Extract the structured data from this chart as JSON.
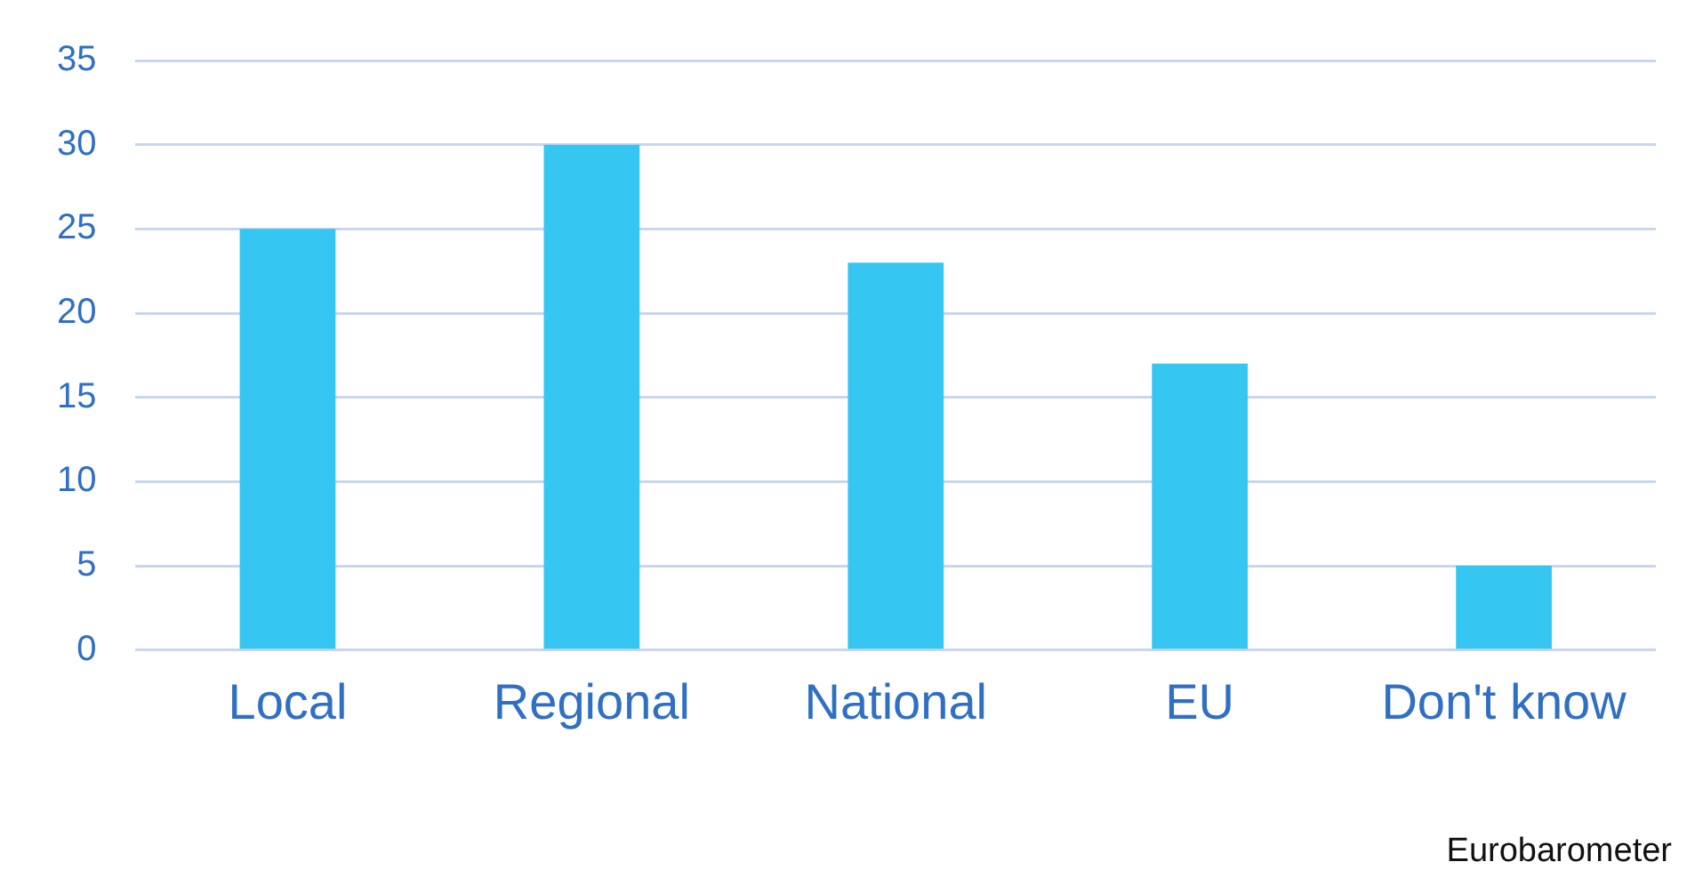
{
  "chart_data": {
    "type": "bar",
    "categories": [
      "Local",
      "Regional",
      "National",
      "EU",
      "Don't know"
    ],
    "values": [
      25,
      30,
      23,
      17,
      5
    ],
    "color": "#35c6f1",
    "ylim": [
      0,
      35
    ],
    "yticks": [
      0,
      5,
      10,
      15,
      20,
      25,
      30,
      35
    ],
    "grid": "y",
    "legend": false,
    "annotations": [
      "Eurobarometer"
    ]
  }
}
